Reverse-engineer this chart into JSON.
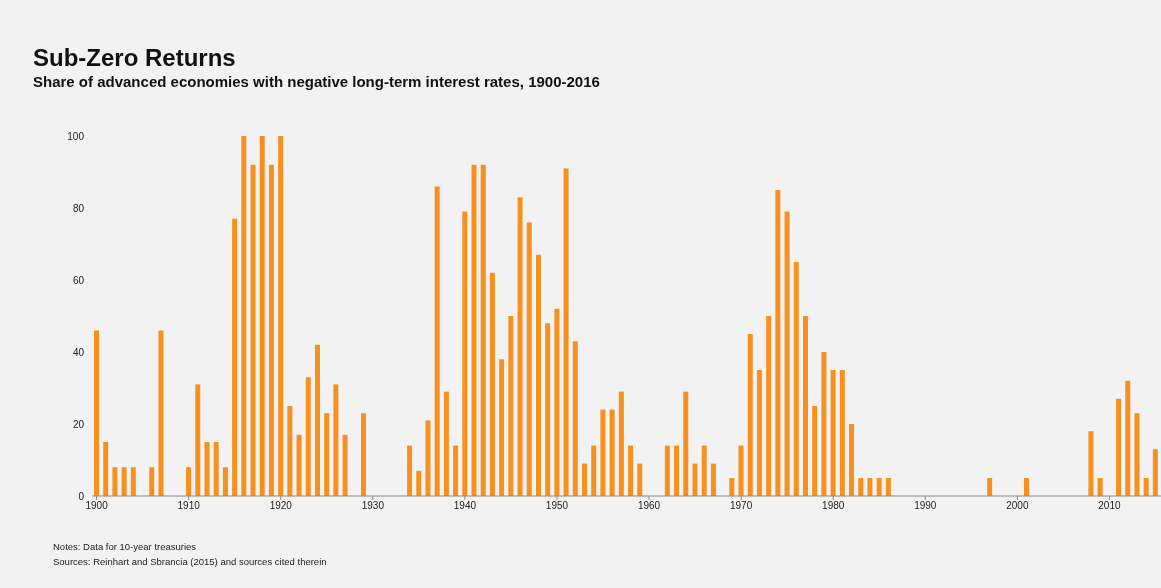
{
  "chart_data": {
    "type": "bar",
    "title": "Sub-Zero Returns",
    "subtitle": "Share of advanced economies with negative long-term interest rates, 1900-2016",
    "x": [
      1900,
      1901,
      1902,
      1903,
      1904,
      1905,
      1906,
      1907,
      1908,
      1909,
      1910,
      1911,
      1912,
      1913,
      1914,
      1915,
      1916,
      1917,
      1918,
      1919,
      1920,
      1921,
      1922,
      1923,
      1924,
      1925,
      1926,
      1927,
      1928,
      1929,
      1930,
      1931,
      1932,
      1933,
      1934,
      1935,
      1936,
      1937,
      1938,
      1939,
      1940,
      1941,
      1942,
      1943,
      1944,
      1945,
      1946,
      1947,
      1948,
      1949,
      1950,
      1951,
      1952,
      1953,
      1954,
      1955,
      1956,
      1957,
      1958,
      1959,
      1960,
      1961,
      1962,
      1963,
      1964,
      1965,
      1966,
      1967,
      1968,
      1969,
      1970,
      1971,
      1972,
      1973,
      1974,
      1975,
      1976,
      1977,
      1978,
      1979,
      1980,
      1981,
      1982,
      1983,
      1984,
      1985,
      1986,
      1987,
      1988,
      1989,
      1990,
      1991,
      1992,
      1993,
      1994,
      1995,
      1996,
      1997,
      1998,
      1999,
      2000,
      2001,
      2002,
      2003,
      2004,
      2005,
      2006,
      2007,
      2008,
      2009,
      2010,
      2011,
      2012,
      2013,
      2014,
      2015
    ],
    "values": [
      46,
      15,
      8,
      8,
      8,
      0,
      8,
      46,
      0,
      0,
      8,
      31,
      15,
      15,
      8,
      77,
      100,
      92,
      100,
      92,
      100,
      25,
      17,
      33,
      42,
      23,
      31,
      17,
      0,
      23,
      0,
      0,
      0,
      0,
      14,
      7,
      21,
      86,
      29,
      14,
      79,
      92,
      92,
      62,
      38,
      50,
      83,
      76,
      67,
      48,
      52,
      91,
      43,
      9,
      14,
      24,
      24,
      29,
      14,
      9,
      0,
      0,
      14,
      14,
      29,
      9,
      14,
      9,
      0,
      5,
      14,
      45,
      35,
      50,
      85,
      79,
      65,
      50,
      25,
      40,
      35,
      35,
      20,
      5,
      5,
      5,
      5,
      0,
      0,
      0,
      0,
      0,
      0,
      0,
      0,
      0,
      0,
      5,
      0,
      0,
      0,
      5,
      0,
      0,
      0,
      0,
      0,
      0,
      18,
      5,
      0,
      27,
      32,
      23,
      5,
      13
    ],
    "color": "#f7901e",
    "xlim": [
      1899.5,
      2015.6
    ],
    "xticks": [
      1900,
      1910,
      1920,
      1930,
      1940,
      1950,
      1960,
      1970,
      1980,
      1990,
      2000,
      2010
    ],
    "ylim": [
      0,
      100
    ],
    "yticks": [
      0,
      20,
      40,
      60,
      80,
      100
    ],
    "grid": false,
    "legend": false,
    "annotations": [
      "Notes: Data for 10-year treasuries",
      "Sources: Reinhart and Sbrancia (2015) and sources cited therein"
    ]
  }
}
